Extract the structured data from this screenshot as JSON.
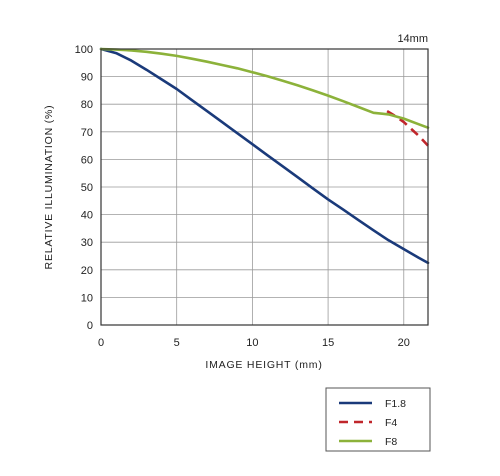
{
  "chart_data": {
    "type": "line",
    "caption": "14mm",
    "xlabel": "IMAGE HEIGHT (mm)",
    "ylabel": "RELATIVE ILLUMINATION (%)",
    "xlim": [
      0,
      21.6
    ],
    "ylim": [
      0,
      100
    ],
    "xticks": [
      0,
      5,
      10,
      15,
      20
    ],
    "yticks": [
      0,
      10,
      20,
      30,
      40,
      50,
      60,
      70,
      80,
      90,
      100
    ],
    "grid": true,
    "legend_position": "bottom-right",
    "series": [
      {
        "name": "F1.8",
        "color": "#1a3a7a",
        "dash": "solid",
        "points": [
          [
            0,
            100
          ],
          [
            1,
            98.5
          ],
          [
            2,
            95.8
          ],
          [
            3,
            92.5
          ],
          [
            4,
            89
          ],
          [
            5,
            85.5
          ],
          [
            6,
            81.5
          ],
          [
            7,
            77.5
          ],
          [
            8,
            73.5
          ],
          [
            9,
            69.5
          ],
          [
            10,
            65.5
          ],
          [
            11,
            61.5
          ],
          [
            12,
            57.5
          ],
          [
            13,
            53.5
          ],
          [
            14,
            49.5
          ],
          [
            15,
            45.5
          ],
          [
            16,
            41.8
          ],
          [
            17,
            38
          ],
          [
            18,
            34.3
          ],
          [
            19,
            30.7
          ],
          [
            20,
            27.5
          ],
          [
            21,
            24.3
          ],
          [
            21.6,
            22.5
          ]
        ]
      },
      {
        "name": "F4",
        "color": "#c0262b",
        "dash": "dashed",
        "points": [
          [
            18.9,
            77.5
          ],
          [
            19.5,
            75.5
          ],
          [
            20,
            73.5
          ],
          [
            20.5,
            71
          ],
          [
            21,
            68.5
          ],
          [
            21.6,
            65
          ]
        ]
      },
      {
        "name": "F8",
        "color": "#8cb23a",
        "dash": "solid",
        "points": [
          [
            0,
            100
          ],
          [
            1,
            99.8
          ],
          [
            2,
            99.5
          ],
          [
            3,
            99
          ],
          [
            4,
            98.3
          ],
          [
            5,
            97.5
          ],
          [
            6,
            96.5
          ],
          [
            7,
            95.4
          ],
          [
            8,
            94.2
          ],
          [
            9,
            93
          ],
          [
            10,
            91.6
          ],
          [
            11,
            90.1
          ],
          [
            12,
            88.5
          ],
          [
            13,
            86.8
          ],
          [
            14,
            85
          ],
          [
            15,
            83.1
          ],
          [
            16,
            81.1
          ],
          [
            17,
            79
          ],
          [
            18,
            76.9
          ],
          [
            19,
            76.3
          ],
          [
            20,
            74.8
          ],
          [
            21,
            72.7
          ],
          [
            21.6,
            71.5
          ]
        ]
      }
    ]
  }
}
